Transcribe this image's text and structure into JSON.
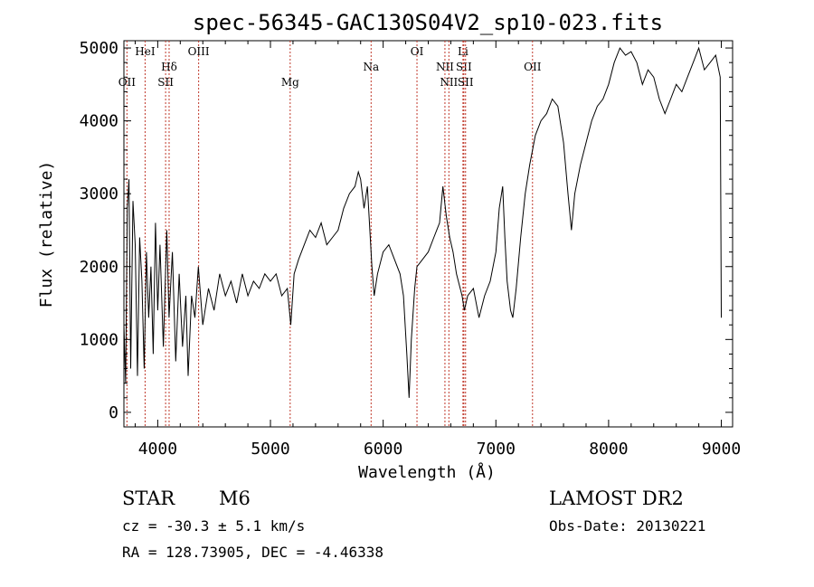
{
  "chart_data": {
    "type": "line",
    "title": "spec-56345-GAC130S04V2_sp10-023.fits",
    "xlabel": "Wavelength (Å)",
    "ylabel": "Flux (relative)",
    "xlim": [
      3700,
      9100
    ],
    "ylim": [
      -200,
      5100
    ],
    "xticks": [
      4000,
      5000,
      6000,
      7000,
      8000,
      9000
    ],
    "yticks": [
      0,
      1000,
      2000,
      3000,
      4000,
      5000
    ],
    "grid": false,
    "series": [
      {
        "points": [
          [
            3700,
            1200
          ],
          [
            3715,
            400
          ],
          [
            3730,
            2800
          ],
          [
            3745,
            3200
          ],
          [
            3760,
            600
          ],
          [
            3780,
            2900
          ],
          [
            3800,
            2300
          ],
          [
            3820,
            500
          ],
          [
            3840,
            2400
          ],
          [
            3860,
            1800
          ],
          [
            3880,
            600
          ],
          [
            3900,
            2200
          ],
          [
            3920,
            1300
          ],
          [
            3940,
            2000
          ],
          [
            3960,
            800
          ],
          [
            3980,
            2600
          ],
          [
            4000,
            1400
          ],
          [
            4020,
            2300
          ],
          [
            4050,
            900
          ],
          [
            4080,
            2500
          ],
          [
            4100,
            1300
          ],
          [
            4130,
            2200
          ],
          [
            4160,
            700
          ],
          [
            4190,
            1900
          ],
          [
            4220,
            900
          ],
          [
            4250,
            1600
          ],
          [
            4270,
            500
          ],
          [
            4300,
            1600
          ],
          [
            4330,
            1300
          ],
          [
            4360,
            2000
          ],
          [
            4400,
            1200
          ],
          [
            4450,
            1700
          ],
          [
            4500,
            1400
          ],
          [
            4550,
            1900
          ],
          [
            4600,
            1600
          ],
          [
            4650,
            1800
          ],
          [
            4700,
            1500
          ],
          [
            4750,
            1900
          ],
          [
            4800,
            1600
          ],
          [
            4850,
            1800
          ],
          [
            4900,
            1700
          ],
          [
            4950,
            1900
          ],
          [
            5000,
            1800
          ],
          [
            5050,
            1900
          ],
          [
            5100,
            1600
          ],
          [
            5150,
            1700
          ],
          [
            5180,
            1200
          ],
          [
            5210,
            1900
          ],
          [
            5250,
            2100
          ],
          [
            5300,
            2300
          ],
          [
            5350,
            2500
          ],
          [
            5400,
            2400
          ],
          [
            5450,
            2600
          ],
          [
            5500,
            2300
          ],
          [
            5550,
            2400
          ],
          [
            5600,
            2500
          ],
          [
            5650,
            2800
          ],
          [
            5700,
            3000
          ],
          [
            5750,
            3100
          ],
          [
            5780,
            3300
          ],
          [
            5800,
            3200
          ],
          [
            5830,
            2800
          ],
          [
            5860,
            3100
          ],
          [
            5900,
            2000
          ],
          [
            5920,
            1600
          ],
          [
            5950,
            1900
          ],
          [
            6000,
            2200
          ],
          [
            6050,
            2300
          ],
          [
            6100,
            2100
          ],
          [
            6150,
            1900
          ],
          [
            6180,
            1600
          ],
          [
            6210,
            800
          ],
          [
            6230,
            200
          ],
          [
            6250,
            1000
          ],
          [
            6280,
            1700
          ],
          [
            6300,
            2000
          ],
          [
            6350,
            2100
          ],
          [
            6400,
            2200
          ],
          [
            6450,
            2400
          ],
          [
            6500,
            2600
          ],
          [
            6530,
            3100
          ],
          [
            6560,
            2700
          ],
          [
            6590,
            2400
          ],
          [
            6620,
            2200
          ],
          [
            6650,
            1900
          ],
          [
            6700,
            1600
          ],
          [
            6720,
            1400
          ],
          [
            6750,
            1600
          ],
          [
            6800,
            1700
          ],
          [
            6850,
            1300
          ],
          [
            6900,
            1600
          ],
          [
            6950,
            1800
          ],
          [
            7000,
            2200
          ],
          [
            7030,
            2800
          ],
          [
            7060,
            3100
          ],
          [
            7080,
            2400
          ],
          [
            7100,
            1800
          ],
          [
            7130,
            1400
          ],
          [
            7150,
            1300
          ],
          [
            7180,
            1700
          ],
          [
            7220,
            2400
          ],
          [
            7260,
            3000
          ],
          [
            7300,
            3400
          ],
          [
            7350,
            3800
          ],
          [
            7400,
            4000
          ],
          [
            7450,
            4100
          ],
          [
            7500,
            4300
          ],
          [
            7550,
            4200
          ],
          [
            7600,
            3700
          ],
          [
            7640,
            3000
          ],
          [
            7670,
            2500
          ],
          [
            7700,
            3000
          ],
          [
            7750,
            3400
          ],
          [
            7800,
            3700
          ],
          [
            7850,
            4000
          ],
          [
            7900,
            4200
          ],
          [
            7950,
            4300
          ],
          [
            8000,
            4500
          ],
          [
            8050,
            4800
          ],
          [
            8100,
            5000
          ],
          [
            8150,
            4900
          ],
          [
            8200,
            4950
          ],
          [
            8250,
            4800
          ],
          [
            8300,
            4500
          ],
          [
            8350,
            4700
          ],
          [
            8400,
            4600
          ],
          [
            8450,
            4300
          ],
          [
            8500,
            4100
          ],
          [
            8550,
            4300
          ],
          [
            8600,
            4500
          ],
          [
            8650,
            4400
          ],
          [
            8700,
            4600
          ],
          [
            8750,
            4800
          ],
          [
            8800,
            5000
          ],
          [
            8850,
            4700
          ],
          [
            8900,
            4800
          ],
          [
            8950,
            4900
          ],
          [
            8990,
            4600
          ],
          [
            9000,
            1300
          ]
        ]
      }
    ],
    "lines": [
      {
        "label": "OII",
        "x": 3727,
        "row": 2
      },
      {
        "label": "HeI",
        "x": 3888,
        "row": 1
      },
      {
        "label": "Hδ",
        "x": 4101,
        "row": 1.5
      },
      {
        "label": "SII",
        "x": 4070,
        "row": 2
      },
      {
        "label": "OIII",
        "x": 4363,
        "row": 1
      },
      {
        "label": "Mg",
        "x": 5175,
        "row": 2
      },
      {
        "label": "Na",
        "x": 5893,
        "row": 1.5
      },
      {
        "label": "OI",
        "x": 6300,
        "row": 1
      },
      {
        "label": "NII",
        "x": 6548,
        "row": 1.5
      },
      {
        "label": "NII",
        "x": 6583,
        "row": 2
      },
      {
        "label": "Li",
        "x": 6708,
        "row": 1
      },
      {
        "label": "SII",
        "x": 6716,
        "row": 1.5
      },
      {
        "label": "SII",
        "x": 6731,
        "row": 2
      },
      {
        "label": "OII",
        "x": 7325,
        "row": 1.5
      }
    ]
  },
  "info": {
    "class_label": "STAR",
    "subclass": "M6",
    "survey": "LAMOST DR2",
    "cz": "cz = -30.3 ± 5.1 km/s",
    "obs_date": "Obs-Date: 20130221",
    "coords": "RA = 128.73905, DEC =  -4.46338"
  }
}
